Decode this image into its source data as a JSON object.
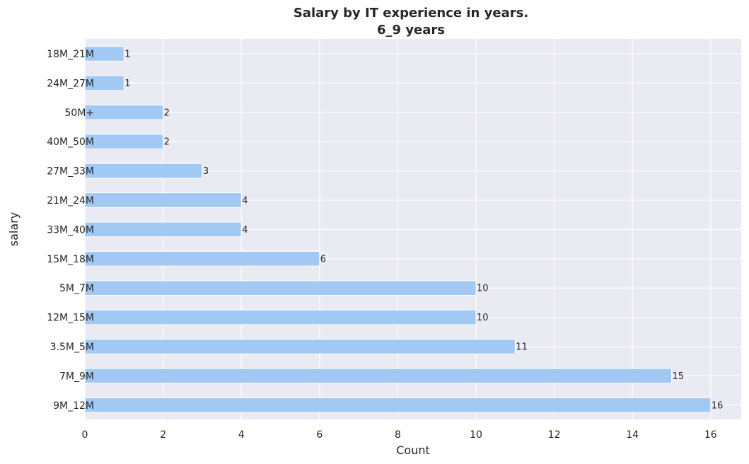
{
  "chart_data": {
    "type": "bar",
    "orientation": "horizontal",
    "title": "Salary by IT experience in years.",
    "subtitle": "6_9 years",
    "xlabel": "Count",
    "ylabel": "salary",
    "categories": [
      "18M_21M",
      "24M_27M",
      "50M+",
      "40M_50M",
      "27M_33M",
      "21M_24M",
      "33M_40M",
      "15M_18M",
      "5M_7M",
      "12M_15M",
      "3.5M_5M",
      "7M_9M",
      "9M_12M"
    ],
    "values": [
      1,
      1,
      2,
      2,
      3,
      4,
      4,
      6,
      10,
      10,
      11,
      15,
      16
    ],
    "xlim": [
      0,
      16.8
    ],
    "xticks": [
      0,
      2,
      4,
      6,
      8,
      10,
      12,
      14,
      16
    ],
    "grid": true,
    "colors": {
      "bar": "#a1c9f4",
      "plot_bg": "#eaeaf2",
      "grid": "#ffffff",
      "text": "#262626"
    }
  }
}
